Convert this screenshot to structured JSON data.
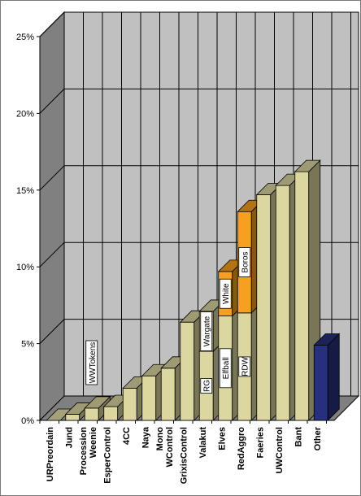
{
  "chart_data": {
    "type": "bar",
    "stacked": true,
    "three_d": true,
    "title": "",
    "xlabel": "",
    "ylabel": "",
    "ylim": [
      0,
      25
    ],
    "y_ticks": [
      "0%",
      "5%",
      "10%",
      "15%",
      "20%",
      "25%"
    ],
    "grid": true,
    "legend": "none",
    "categories": [
      {
        "label": "URPreordain",
        "segments": [
          {
            "value": 0.0,
            "color": "#dcd6a0"
          }
        ]
      },
      {
        "label": "Jund",
        "segments": [
          {
            "value": 0.4,
            "color": "#dcd6a0"
          }
        ]
      },
      {
        "label": "Procession\nWeenie",
        "segments": [
          {
            "value": 0.8,
            "color": "#dcd6a0"
          }
        ]
      },
      {
        "label": "EsperControl",
        "segments": [
          {
            "value": 0.9,
            "color": "#dcd6a0"
          }
        ]
      },
      {
        "label": "4CC",
        "segments": [
          {
            "value": 2.1,
            "color": "#dcd6a0"
          }
        ]
      },
      {
        "label": "Naya",
        "segments": [
          {
            "value": 2.9,
            "color": "#dcd6a0"
          }
        ]
      },
      {
        "label": "Mono\nWControl",
        "segments": [
          {
            "value": 3.4,
            "color": "#dcd6a0"
          }
        ]
      },
      {
        "label": "GrixisControl",
        "segments": [
          {
            "value": 6.4,
            "color": "#dcd6a0"
          }
        ]
      },
      {
        "label": "Valakut",
        "segments": [
          {
            "value": 4.5,
            "color": "#dcd6a0",
            "name": "RG"
          },
          {
            "value": 2.6,
            "color": "#dcd6a0",
            "name": "Wargate"
          }
        ]
      },
      {
        "label": "Elves",
        "segments": [
          {
            "value": 6.8,
            "color": "#dcd6a0",
            "name": "Elfball"
          },
          {
            "value": 2.9,
            "color": "#f7a020",
            "name": "White"
          }
        ]
      },
      {
        "label": "RedAggro",
        "segments": [
          {
            "value": 7.0,
            "color": "#dcd6a0",
            "name": "RDW"
          },
          {
            "value": 6.6,
            "color": "#f7a020",
            "name": "Boros"
          }
        ]
      },
      {
        "label": "Faeries",
        "segments": [
          {
            "value": 14.7,
            "color": "#dcd6a0"
          }
        ]
      },
      {
        "label": "UWControl",
        "segments": [
          {
            "value": 15.3,
            "color": "#dcd6a0"
          }
        ]
      },
      {
        "label": "Bant",
        "segments": [
          {
            "value": 16.2,
            "color": "#dcd6a0"
          }
        ]
      },
      {
        "label": "Other",
        "segments": [
          {
            "value": 4.9,
            "color": "#27307f"
          }
        ]
      }
    ],
    "annotations": [
      {
        "text": "WWTokens"
      }
    ],
    "colors": {
      "wall": "#c0c0c0",
      "left_wall": "#808080",
      "floor": "#808080",
      "grid": "#000000"
    }
  }
}
